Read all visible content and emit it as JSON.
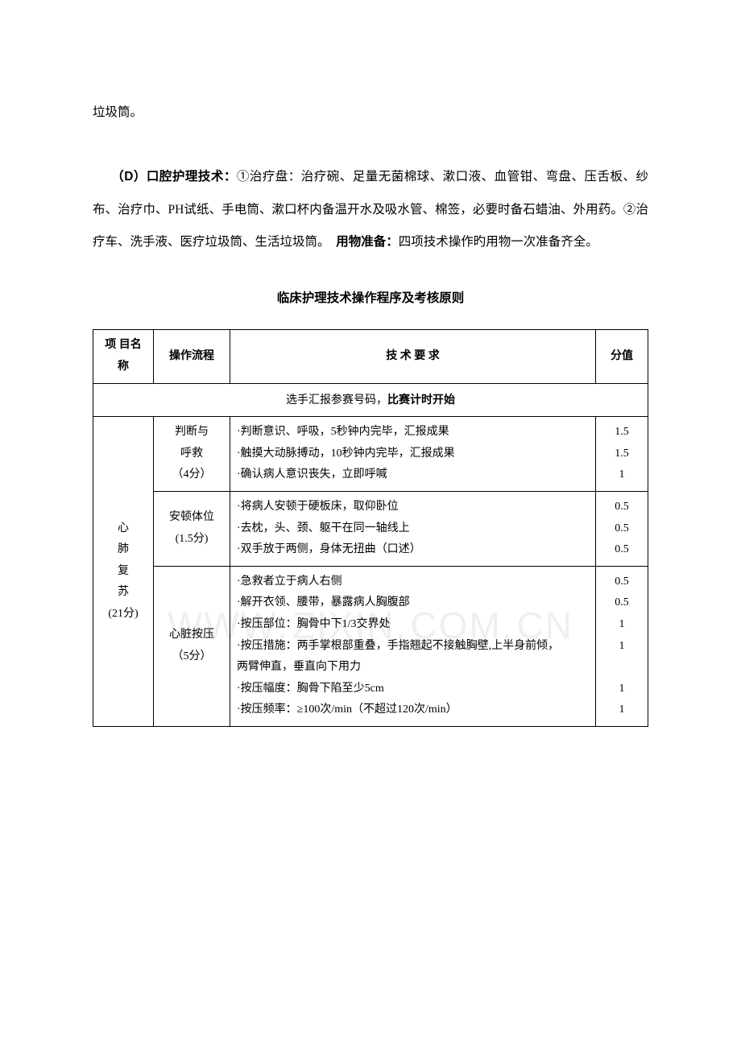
{
  "watermark": "WWW.ZIXIN.COM.CN",
  "intro": {
    "line_top": "垃圾筒。",
    "d_label": "（D）口腔护理技术：",
    "d_body": "①治疗盘：治疗碗、足量无菌棉球、漱口液、血管钳、弯盘、压舌板、纱布、治疗巾、PH试纸、手电筒、漱口杯内备温开水及吸水管、棉签，必要时备石蜡油、外用药。②治疗车、洗手液、医疗垃圾筒、生活垃圾筒。　",
    "prep_label": "用物准备：",
    "prep_body": "四项技术操作旳用物一次准备齐全。"
  },
  "section_title": "临床护理技术操作程序及考核原则",
  "table": {
    "headers": {
      "name": "项 目名称",
      "flow": "操作流程",
      "req": "技 术 要 求",
      "score": "分值"
    },
    "full_row": {
      "pre": "选手汇报参赛号码，",
      "bold": "比赛计时开始"
    },
    "proj1": {
      "name_lines": "心\n肺\n复\n苏\n(21分)",
      "rows": [
        {
          "flow": "判断与\n呼救\n（4分）",
          "req": "·判断意识、呼吸，5秒钟内完毕，汇报成果\n·触摸大动脉搏动，10秒钟内完毕，汇报成果\n·确认病人意识丧失，立即呼喊",
          "score": "1.5\n1.5\n1"
        },
        {
          "flow": "安顿体位\n(1.5分)",
          "req": "·将病人安顿于硬板床，取仰卧位\n·去枕，头、颈、躯干在同一轴线上\n·双手放于两侧，身体无扭曲（口述）",
          "score": "0.5\n0.5\n0.5"
        },
        {
          "flow": "心脏按压\n（5分）",
          "req": "·急救者立于病人右侧\n·解开衣领、腰带，暴露病人胸腹部\n·按压部位：胸骨中下1/3交界处\n·按压措施：两手掌根部重叠，手指翘起不接触胸壁,上半身前倾，\n两臂伸直，垂直向下用力\n·按压幅度：胸骨下陷至少5cm\n·按压频率：≥100次/min（不超过120次/min）",
          "score": "0.5\n0.5\n1\n1\n\n1\n1"
        }
      ]
    }
  }
}
